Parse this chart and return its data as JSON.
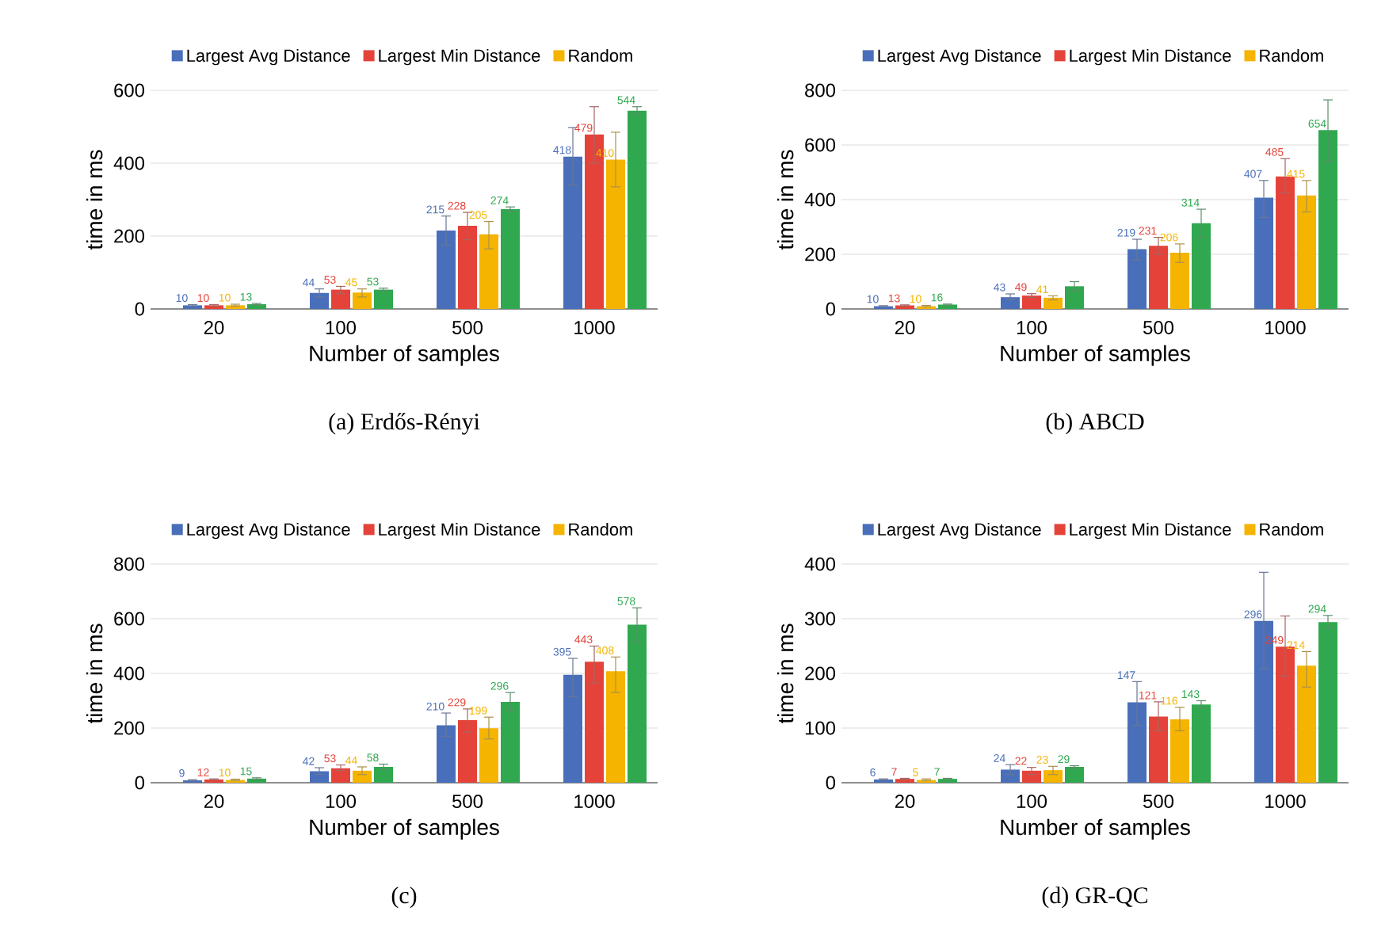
{
  "chart_data": [
    {
      "type": "bar",
      "title": "(a) Erdős-Rényi",
      "xlabel": "Number of samples",
      "ylabel": "time in ms",
      "categories": [
        "20",
        "100",
        "500",
        "1000"
      ],
      "ylim": [
        0,
        600
      ],
      "yticks": [
        0,
        200,
        400,
        600
      ],
      "grid": "y",
      "legend": "top",
      "data_labels": true,
      "series": [
        {
          "name": "Largest Avg Distance",
          "color": "#4a6fba",
          "values": [
            10,
            44,
            215,
            418
          ],
          "errors": [
            [
              8,
              12
            ],
            [
              33,
              55
            ],
            [
              175,
              255
            ],
            [
              340,
              498
            ]
          ]
        },
        {
          "name": "Largest Min Distance",
          "color": "#e5433a",
          "values": [
            10,
            53,
            228,
            479
          ],
          "errors": [
            [
              8,
              12
            ],
            [
              42,
              62
            ],
            [
              190,
              265
            ],
            [
              400,
              555
            ]
          ]
        },
        {
          "name": "Random",
          "color": "#f4b400",
          "values": [
            10,
            45,
            205,
            410
          ],
          "errors": [
            [
              8,
              13
            ],
            [
              33,
              55
            ],
            [
              165,
              240
            ],
            [
              335,
              485
            ]
          ]
        },
        {
          "color": "#2fa84f",
          "values": [
            13,
            53,
            274,
            544
          ],
          "errors": [
            [
              11,
              15
            ],
            [
              50,
              57
            ],
            [
              268,
              280
            ],
            [
              535,
              555
            ]
          ]
        }
      ]
    },
    {
      "type": "bar",
      "title": "(b) ABCD",
      "xlabel": "Number of samples",
      "ylabel": "time in ms",
      "categories": [
        "20",
        "100",
        "500",
        "1000"
      ],
      "ylim": [
        0,
        800
      ],
      "yticks": [
        0,
        200,
        400,
        600,
        800
      ],
      "grid": "y",
      "legend": "top",
      "series": [
        {
          "name": "Largest Avg Distance",
          "color": "#4a6fba",
          "values": [
            10,
            43,
            219,
            407
          ],
          "errors": [
            [
              8,
              12
            ],
            [
              35,
              55
            ],
            [
              180,
              255
            ],
            [
              335,
              470
            ]
          ],
          "value_labels": [
            "10",
            "43",
            "219",
            "407"
          ]
        },
        {
          "name": "Largest Min Distance",
          "color": "#e5433a",
          "values": [
            13,
            49,
            231,
            485
          ],
          "errors": [
            [
              11,
              15
            ],
            [
              42,
              56
            ],
            [
              200,
              262
            ],
            [
              425,
              550
            ]
          ],
          "value_labels": [
            "13",
            "49",
            "231",
            "485"
          ]
        },
        {
          "name": "Random",
          "color": "#f4b400",
          "values": [
            10,
            41,
            206,
            415
          ],
          "errors": [
            [
              8,
              13
            ],
            [
              33,
              48
            ],
            [
              170,
              238
            ],
            [
              355,
              470
            ]
          ],
          "value_labels": [
            "10",
            "41",
            "206",
            "415"
          ]
        },
        {
          "color": "#2fa84f",
          "values": [
            16,
            83,
            314,
            654
          ],
          "errors": [
            [
              14,
              18
            ],
            [
              65,
              100
            ],
            [
              262,
              365
            ],
            [
              540,
              765
            ]
          ],
          "value_labels": [
            "16",
            null,
            "314",
            "654"
          ]
        }
      ]
    },
    {
      "type": "bar",
      "title": "(c)",
      "xlabel": "Number of samples",
      "ylabel": "time in ms",
      "categories": [
        "20",
        "100",
        "500",
        "1000"
      ],
      "ylim": [
        0,
        800
      ],
      "yticks": [
        0,
        200,
        400,
        600,
        800
      ],
      "grid": "y",
      "legend": "top",
      "data_labels": true,
      "series": [
        {
          "name": "Largest Avg Distance",
          "color": "#4a6fba",
          "values": [
            9,
            42,
            210,
            395
          ],
          "errors": [
            [
              7,
              11
            ],
            [
              30,
              55
            ],
            [
              170,
              255
            ],
            [
              315,
              455
            ]
          ]
        },
        {
          "name": "Largest Min Distance",
          "color": "#e5433a",
          "values": [
            12,
            53,
            229,
            443
          ],
          "errors": [
            [
              10,
              14
            ],
            [
              45,
              65
            ],
            [
              185,
              270
            ],
            [
              365,
              500
            ]
          ]
        },
        {
          "name": "Random",
          "color": "#f4b400",
          "values": [
            10,
            44,
            199,
            408
          ],
          "errors": [
            [
              8,
              13
            ],
            [
              30,
              58
            ],
            [
              160,
              240
            ],
            [
              330,
              460
            ]
          ]
        },
        {
          "color": "#2fa84f",
          "values": [
            15,
            58,
            296,
            578
          ],
          "errors": [
            [
              13,
              18
            ],
            [
              50,
              68
            ],
            [
              265,
              330
            ],
            [
              515,
              640
            ]
          ]
        }
      ]
    },
    {
      "type": "bar",
      "title": "(d) GR-QC",
      "xlabel": "Number of samples",
      "ylabel": "time in ms",
      "categories": [
        "20",
        "100",
        "500",
        "1000"
      ],
      "ylim": [
        0,
        400
      ],
      "yticks": [
        0,
        100,
        200,
        300,
        400
      ],
      "grid": "y",
      "legend": "top",
      "data_labels": true,
      "series": [
        {
          "name": "Largest Avg Distance",
          "color": "#4a6fba",
          "values": [
            6,
            24,
            147,
            296
          ],
          "errors": [
            [
              5,
              7
            ],
            [
              15,
              33
            ],
            [
              105,
              185
            ],
            [
              208,
              385
            ]
          ]
        },
        {
          "name": "Largest Min Distance",
          "color": "#e5433a",
          "values": [
            7,
            22,
            121,
            249
          ],
          "errors": [
            [
              6,
              8
            ],
            [
              15,
              28
            ],
            [
              95,
              148
            ],
            [
              195,
              305
            ]
          ]
        },
        {
          "name": "Random",
          "color": "#f4b400",
          "values": [
            5,
            23,
            116,
            214
          ],
          "errors": [
            [
              4,
              7
            ],
            [
              15,
              30
            ],
            [
              95,
              138
            ],
            [
              175,
              240
            ]
          ]
        },
        {
          "color": "#2fa84f",
          "values": [
            7,
            29,
            143,
            294
          ],
          "errors": [
            [
              6,
              8
            ],
            [
              27,
              31
            ],
            [
              137,
              150
            ],
            [
              282,
              306
            ]
          ]
        }
      ]
    }
  ]
}
